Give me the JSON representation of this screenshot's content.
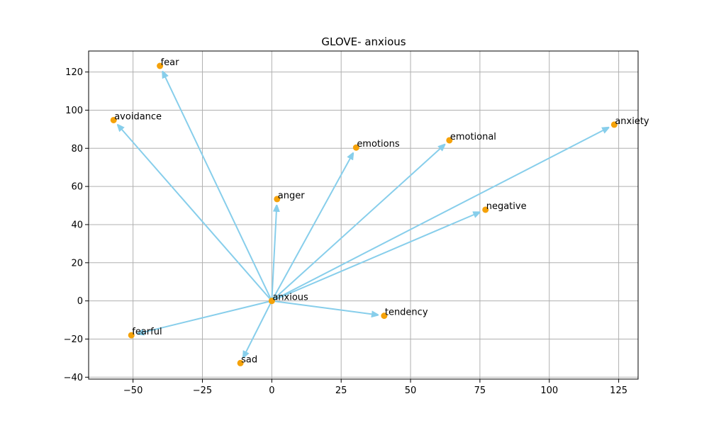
{
  "chart_data": {
    "type": "scatter",
    "title": "GLOVE- anxious",
    "xlabel": "",
    "ylabel": "",
    "xlim": [
      -66,
      132
    ],
    "ylim": [
      -41,
      131
    ],
    "xticks": [
      -50,
      -25,
      0,
      25,
      50,
      75,
      100,
      125
    ],
    "yticks": [
      -40,
      -20,
      0,
      20,
      40,
      60,
      80,
      100,
      120
    ],
    "grid": true,
    "origin": {
      "label": "anxious",
      "x": 0,
      "y": 0
    },
    "points": [
      {
        "label": "fear",
        "x": -40.3,
        "y": 123.2
      },
      {
        "label": "avoidance",
        "x": -57.0,
        "y": 94.8
      },
      {
        "label": "emotions",
        "x": 30.4,
        "y": 80.4
      },
      {
        "label": "emotional",
        "x": 64.0,
        "y": 84.2
      },
      {
        "label": "anxiety",
        "x": 123.4,
        "y": 92.4
      },
      {
        "label": "anger",
        "x": 1.9,
        "y": 53.4
      },
      {
        "label": "negative",
        "x": 77.0,
        "y": 47.8
      },
      {
        "label": "tendency",
        "x": 40.5,
        "y": -7.8
      },
      {
        "label": "fearful",
        "x": -50.6,
        "y": -18.0
      },
      {
        "label": "sad",
        "x": -11.3,
        "y": -32.6
      }
    ],
    "colors": {
      "point": "#f5a20a",
      "arrow": "#87ceeb",
      "grid": "#b0b0b0",
      "axis": "#000000"
    }
  }
}
